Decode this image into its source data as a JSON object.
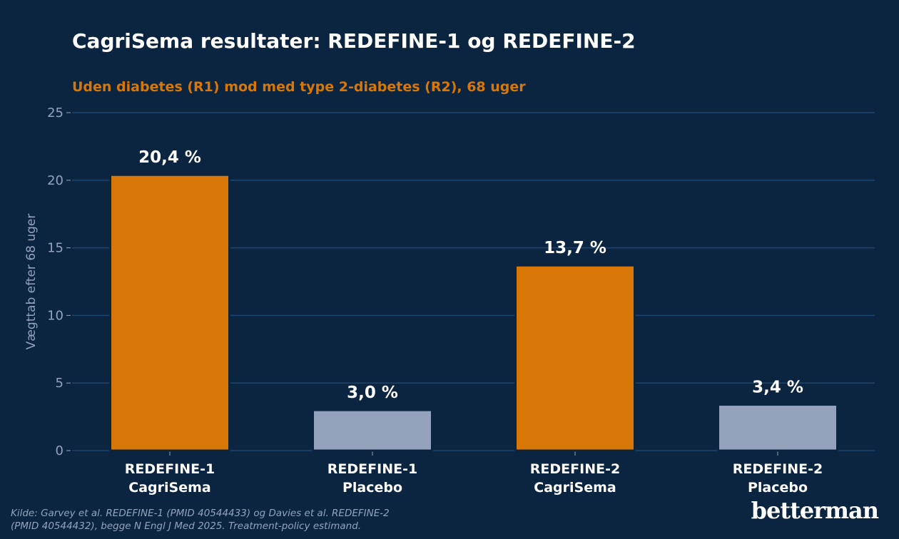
{
  "title": "CagriSema resultater: REDEFINE-1 og REDEFINE-2",
  "subtitle": "Uden diabetes (R1) mod med type 2-diabetes (R2), 68 uger",
  "source": {
    "line1": "Kilde: Garvey et al. REDEFINE-1 (PMID 40544433) og Davies et al. REDEFINE-2",
    "line2": "(PMID 40544432), begge N Engl J Med 2025. Treatment-policy estimand."
  },
  "brand": "betterman",
  "colors": {
    "background": "#0b2540",
    "cagrisema": "#d97706",
    "placebo": "#94a3bb",
    "grid": "#1e4470",
    "axis_text": "#94a3bb",
    "label_text": "#ffffff"
  },
  "chart_data": {
    "type": "bar",
    "ylabel": "Vægttab efter 68 uger",
    "ylim": [
      0,
      25
    ],
    "yticks": [
      0,
      5,
      10,
      15,
      20,
      25
    ],
    "grid": true,
    "categories": [
      [
        "REDEFINE-1",
        "CagriSema"
      ],
      [
        "REDEFINE-1",
        "Placebo"
      ],
      [
        "REDEFINE-2",
        "CagriSema"
      ],
      [
        "REDEFINE-2",
        "Placebo"
      ]
    ],
    "values": [
      20.4,
      3.0,
      13.7,
      3.4
    ],
    "value_labels": [
      "20,4 %",
      "3,0 %",
      "13,7 %",
      "3,4 %"
    ],
    "bar_groups": [
      "cagrisema",
      "placebo",
      "cagrisema",
      "placebo"
    ]
  }
}
